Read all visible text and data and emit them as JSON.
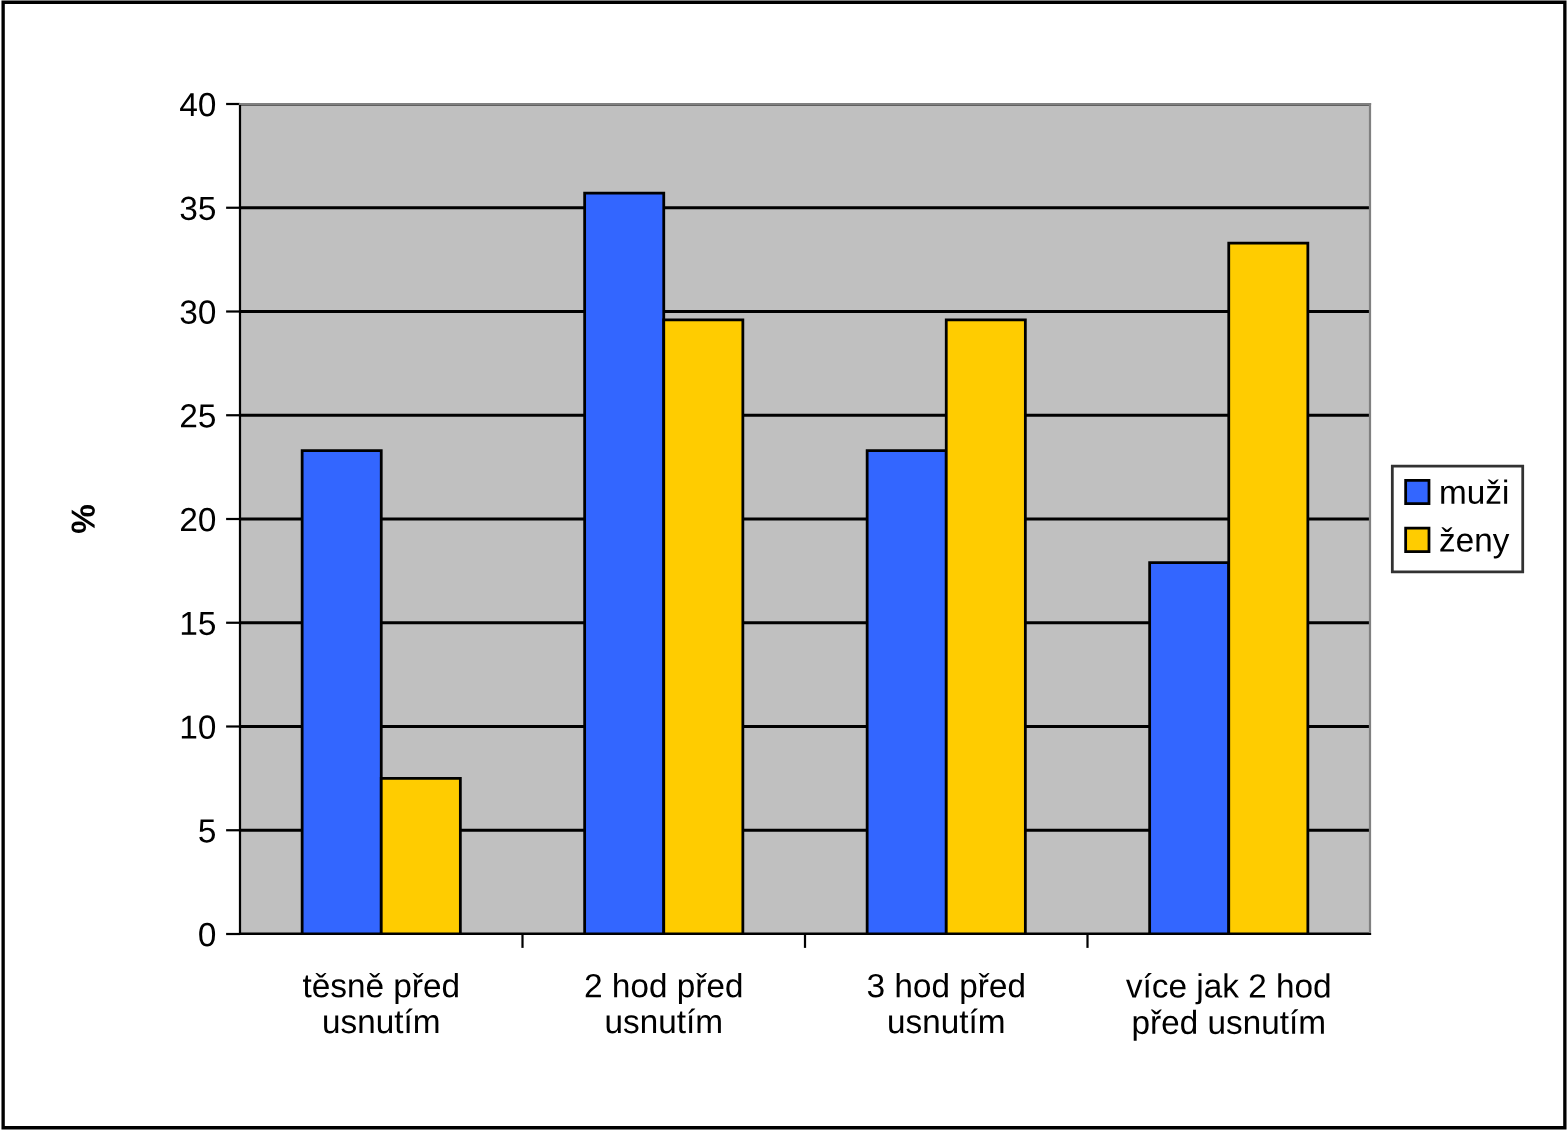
{
  "chart_data": {
    "type": "bar",
    "ylabel": "%",
    "categories": [
      "těsně před\nusnutím",
      "2 hod před\nusnutím",
      "3 hod před\nusnutím",
      "více jak 2 hod\npřed usnutím"
    ],
    "series": [
      {
        "name": "muži",
        "color": "#3366ff",
        "values": [
          23.3,
          35.7,
          23.3,
          17.9
        ]
      },
      {
        "name": "ženy",
        "color": "#ffcc00",
        "values": [
          7.5,
          29.6,
          29.6,
          33.3
        ]
      }
    ],
    "ylim": [
      0,
      40
    ],
    "yticks": [
      0,
      5,
      10,
      15,
      20,
      25,
      30,
      35,
      40
    ],
    "grid": "y",
    "legend": "right"
  }
}
